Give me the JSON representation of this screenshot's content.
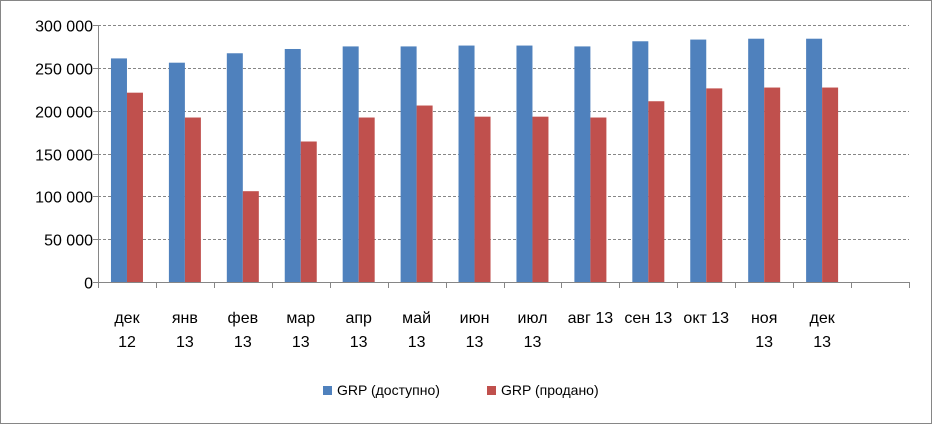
{
  "chart_data": {
    "type": "bar",
    "categories": [
      [
        "дек",
        "12"
      ],
      [
        "янв",
        "13"
      ],
      [
        "фев",
        "13"
      ],
      [
        "мар",
        "13"
      ],
      [
        "апр",
        "13"
      ],
      [
        "май",
        "13"
      ],
      [
        "июн",
        "13"
      ],
      [
        "июл",
        "13"
      ],
      [
        "авг 13"
      ],
      [
        "сен 13"
      ],
      [
        "окт 13"
      ],
      [
        "ноя",
        "13"
      ],
      [
        "дек",
        "13"
      ]
    ],
    "series": [
      {
        "name": "GRP (доступно)",
        "color": "#4F81BD",
        "values": [
          261000,
          256000,
          267000,
          272000,
          275000,
          275000,
          276000,
          276000,
          275000,
          281000,
          283000,
          284000,
          284000
        ]
      },
      {
        "name": "GRP (продано)",
        "color": "#C0504D",
        "values": [
          221000,
          192000,
          106000,
          164000,
          192000,
          206000,
          193000,
          193000,
          192000,
          211000,
          226000,
          227000,
          227000
        ]
      }
    ],
    "category_slots": 14,
    "ylim": [
      0,
      300000
    ],
    "yticks": [
      0,
      50000,
      100000,
      150000,
      200000,
      250000,
      300000
    ],
    "ytick_labels": [
      "0",
      "50 000",
      "100 000",
      "150 000",
      "200 000",
      "250 000",
      "300 000"
    ],
    "grid": true,
    "legend_position": "bottom",
    "title": "",
    "xlabel": "",
    "ylabel": ""
  }
}
